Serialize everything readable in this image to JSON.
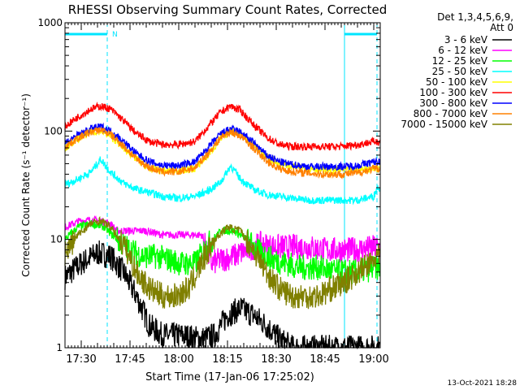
{
  "chart_data": {
    "type": "line",
    "title": "RHESSI Observing Summary Count Rates, Corrected",
    "ylabel": "Corrected Count Rate (s⁻¹ detector⁻¹)",
    "xlabel": "Start Time (17-Jan-06 17:25:02)",
    "yscale": "log",
    "ylim": [
      1,
      1000
    ],
    "xlim_minutes_after_1725": [
      0,
      97
    ],
    "y_ticks": [
      "1",
      "10",
      "100",
      "1000"
    ],
    "x_ticks": [
      {
        "label": "17:30",
        "minute": 5
      },
      {
        "label": "17:45",
        "minute": 20
      },
      {
        "label": "18:00",
        "minute": 35
      },
      {
        "label": "18:15",
        "minute": 50
      },
      {
        "label": "18:30",
        "minute": 65
      },
      {
        "label": "18:45",
        "minute": 80
      },
      {
        "label": "19:00",
        "minute": 95
      }
    ],
    "legend": {
      "position": "top-right",
      "header": [
        "Det 1,3,4,5,6,9,",
        "Att 0"
      ]
    },
    "night_markers": [
      {
        "minute_start": 0,
        "minute_end": 13,
        "label": "N"
      },
      {
        "minute_start": 86,
        "minute_end": 96,
        "label": ""
      }
    ],
    "boundary_lines_minutes": [
      0,
      13,
      86,
      96
    ],
    "series": [
      {
        "name": "3 - 6 keV",
        "color": "#000000",
        "points": [
          [
            0,
            4.5
          ],
          [
            5,
            6
          ],
          [
            10,
            7.5
          ],
          [
            14,
            7
          ],
          [
            18,
            5
          ],
          [
            22,
            3
          ],
          [
            26,
            1.6
          ],
          [
            30,
            1.3
          ],
          [
            36,
            1.3
          ],
          [
            42,
            1.2
          ],
          [
            46,
            1.3
          ],
          [
            50,
            2
          ],
          [
            54,
            2.3
          ],
          [
            58,
            2
          ],
          [
            62,
            1.6
          ],
          [
            66,
            1.2
          ],
          [
            70,
            1
          ]
        ]
      },
      {
        "name": "6 - 12 keV",
        "color": "#ff00ff",
        "points": [
          [
            0,
            13
          ],
          [
            5,
            15
          ],
          [
            10,
            15
          ],
          [
            14,
            14
          ],
          [
            16,
            12
          ],
          [
            20,
            12
          ],
          [
            25,
            12
          ],
          [
            30,
            11
          ],
          [
            36,
            11
          ],
          [
            42,
            11
          ],
          [
            45,
            6
          ],
          [
            48,
            6.5
          ],
          [
            52,
            7
          ],
          [
            56,
            8
          ],
          [
            60,
            9
          ],
          [
            65,
            8.5
          ],
          [
            70,
            8.5
          ],
          [
            75,
            8.5
          ],
          [
            80,
            8
          ],
          [
            85,
            8
          ],
          [
            90,
            8
          ],
          [
            96,
            8.5
          ]
        ]
      },
      {
        "name": "12 - 25 keV",
        "color": "#00ff00",
        "points": [
          [
            0,
            10
          ],
          [
            4,
            13
          ],
          [
            8,
            14
          ],
          [
            12,
            13
          ],
          [
            16,
            10
          ],
          [
            20,
            8
          ],
          [
            24,
            7
          ],
          [
            28,
            7
          ],
          [
            32,
            6.5
          ],
          [
            36,
            6
          ],
          [
            40,
            6
          ],
          [
            44,
            9
          ],
          [
            48,
            12
          ],
          [
            52,
            12
          ],
          [
            56,
            10
          ],
          [
            60,
            7.5
          ],
          [
            64,
            6.5
          ],
          [
            68,
            6
          ],
          [
            72,
            5.5
          ],
          [
            78,
            5.5
          ],
          [
            84,
            5
          ],
          [
            90,
            5
          ],
          [
            96,
            5.5
          ]
        ]
      },
      {
        "name": "25 - 50 keV",
        "color": "#00ffff",
        "points": [
          [
            0,
            32
          ],
          [
            4,
            36
          ],
          [
            8,
            42
          ],
          [
            11,
            55
          ],
          [
            14,
            42
          ],
          [
            18,
            33
          ],
          [
            22,
            29
          ],
          [
            26,
            27
          ],
          [
            30,
            25
          ],
          [
            35,
            24
          ],
          [
            40,
            25
          ],
          [
            44,
            28
          ],
          [
            48,
            34
          ],
          [
            51,
            48
          ],
          [
            54,
            36
          ],
          [
            58,
            29
          ],
          [
            62,
            26
          ],
          [
            66,
            25
          ],
          [
            70,
            24
          ],
          [
            75,
            23
          ],
          [
            80,
            23
          ],
          [
            85,
            23
          ],
          [
            90,
            23
          ],
          [
            95,
            25
          ],
          [
            96,
            30
          ]
        ]
      },
      {
        "name": "50 - 100 keV",
        "color": "#ffff00",
        "points": [
          [
            0,
            70
          ],
          [
            4,
            85
          ],
          [
            8,
            98
          ],
          [
            11,
            100
          ],
          [
            14,
            90
          ],
          [
            18,
            70
          ],
          [
            22,
            55
          ],
          [
            26,
            45
          ],
          [
            30,
            43
          ],
          [
            35,
            43
          ],
          [
            40,
            45
          ],
          [
            44,
            60
          ],
          [
            48,
            85
          ],
          [
            51,
            100
          ],
          [
            54,
            95
          ],
          [
            58,
            75
          ],
          [
            62,
            58
          ],
          [
            66,
            50
          ],
          [
            70,
            47
          ],
          [
            75,
            45
          ],
          [
            80,
            44
          ],
          [
            85,
            44
          ],
          [
            90,
            44
          ],
          [
            95,
            45
          ]
        ]
      },
      {
        "name": "100 - 300 keV",
        "color": "#ff0000",
        "points": [
          [
            0,
            110
          ],
          [
            4,
            135
          ],
          [
            8,
            160
          ],
          [
            11,
            170
          ],
          [
            14,
            160
          ],
          [
            18,
            125
          ],
          [
            22,
            95
          ],
          [
            26,
            80
          ],
          [
            30,
            75
          ],
          [
            35,
            75
          ],
          [
            40,
            80
          ],
          [
            44,
            110
          ],
          [
            48,
            150
          ],
          [
            51,
            170
          ],
          [
            54,
            155
          ],
          [
            58,
            115
          ],
          [
            62,
            88
          ],
          [
            66,
            75
          ],
          [
            70,
            72
          ],
          [
            75,
            72
          ],
          [
            80,
            72
          ],
          [
            85,
            72
          ],
          [
            90,
            75
          ],
          [
            95,
            80
          ]
        ]
      },
      {
        "name": "300 - 800 keV",
        "color": "#0000ff",
        "points": [
          [
            0,
            78
          ],
          [
            4,
            92
          ],
          [
            8,
            105
          ],
          [
            11,
            110
          ],
          [
            14,
            100
          ],
          [
            18,
            80
          ],
          [
            22,
            62
          ],
          [
            26,
            52
          ],
          [
            30,
            48
          ],
          [
            35,
            48
          ],
          [
            40,
            52
          ],
          [
            44,
            70
          ],
          [
            48,
            95
          ],
          [
            51,
            105
          ],
          [
            54,
            98
          ],
          [
            58,
            78
          ],
          [
            62,
            60
          ],
          [
            66,
            52
          ],
          [
            70,
            49
          ],
          [
            75,
            47
          ],
          [
            80,
            47
          ],
          [
            85,
            47
          ],
          [
            90,
            48
          ],
          [
            95,
            52
          ]
        ]
      },
      {
        "name": "800 - 7000 keV",
        "color": "#ff8000",
        "points": [
          [
            0,
            72
          ],
          [
            4,
            86
          ],
          [
            8,
            98
          ],
          [
            11,
            103
          ],
          [
            14,
            93
          ],
          [
            18,
            73
          ],
          [
            22,
            55
          ],
          [
            26,
            46
          ],
          [
            30,
            42
          ],
          [
            35,
            42
          ],
          [
            40,
            46
          ],
          [
            44,
            62
          ],
          [
            48,
            88
          ],
          [
            51,
            98
          ],
          [
            54,
            90
          ],
          [
            58,
            70
          ],
          [
            62,
            53
          ],
          [
            66,
            45
          ],
          [
            70,
            42
          ],
          [
            75,
            41
          ],
          [
            80,
            40
          ],
          [
            85,
            40
          ],
          [
            90,
            41
          ],
          [
            95,
            45
          ]
        ]
      },
      {
        "name": "7000 - 15000 keV",
        "color": "#808000",
        "points": [
          [
            0,
            7.5
          ],
          [
            4,
            11
          ],
          [
            8,
            14
          ],
          [
            11,
            15
          ],
          [
            14,
            13
          ],
          [
            18,
            9
          ],
          [
            22,
            5
          ],
          [
            26,
            3.5
          ],
          [
            30,
            3
          ],
          [
            34,
            3
          ],
          [
            38,
            3.5
          ],
          [
            42,
            6
          ],
          [
            46,
            10
          ],
          [
            50,
            13
          ],
          [
            54,
            12
          ],
          [
            58,
            8
          ],
          [
            62,
            5
          ],
          [
            66,
            3.5
          ],
          [
            70,
            3
          ],
          [
            74,
            3
          ],
          [
            78,
            3
          ],
          [
            82,
            3.5
          ],
          [
            86,
            4
          ],
          [
            90,
            5
          ],
          [
            94,
            6
          ],
          [
            96,
            7
          ]
        ]
      }
    ]
  },
  "footer_timestamp": "13-Oct-2021 18:28"
}
